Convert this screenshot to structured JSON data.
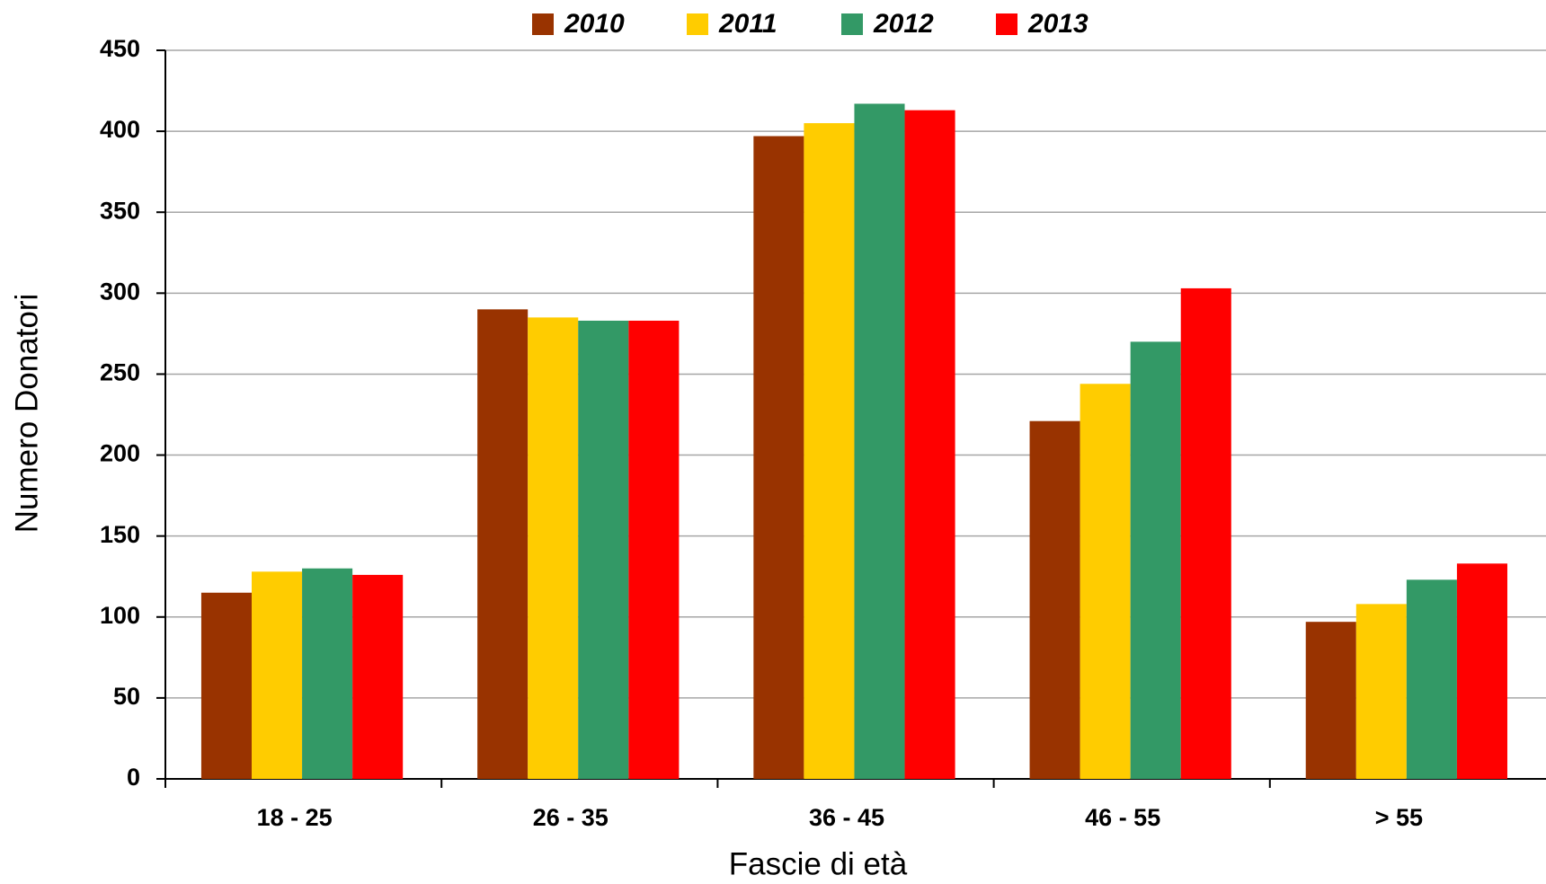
{
  "chart_data": {
    "type": "bar",
    "x_label": "Fascie di età",
    "y_label": "Numero Donatori",
    "categories": [
      "18 - 25",
      "26 - 35",
      "36 - 45",
      "46 - 55",
      "> 55"
    ],
    "series": [
      {
        "name": "2010",
        "color": "#993300",
        "values": [
          115,
          290,
          397,
          221,
          97
        ]
      },
      {
        "name": "2011",
        "color": "#FFCC00",
        "values": [
          128,
          285,
          405,
          244,
          108
        ]
      },
      {
        "name": "2012",
        "color": "#339966",
        "values": [
          130,
          283,
          417,
          270,
          123
        ]
      },
      {
        "name": "2013",
        "color": "#FF0000",
        "values": [
          126,
          283,
          413,
          303,
          133
        ]
      }
    ],
    "ylim": [
      0,
      450
    ],
    "yticks": [
      0,
      50,
      100,
      150,
      200,
      250,
      300,
      350,
      400,
      450
    ],
    "grid": true
  }
}
